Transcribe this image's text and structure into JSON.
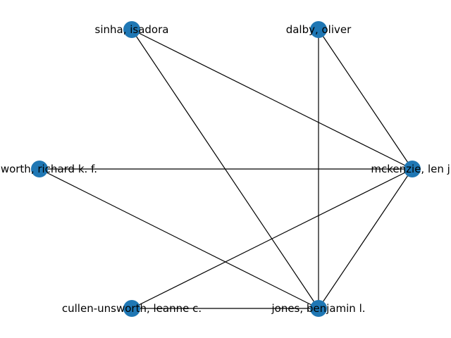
{
  "graph": {
    "node_color": "#1f77b4",
    "edge_color": "#000000",
    "nodes": [
      {
        "id": "sinha",
        "label": "sinha, isadora"
      },
      {
        "id": "dalby",
        "label": "dalby, oliver"
      },
      {
        "id": "unsworth",
        "label": "unsworth, richard k. f."
      },
      {
        "id": "mckenzie",
        "label": "mckenzie, len j."
      },
      {
        "id": "cullen",
        "label": "cullen-unsworth, leanne c."
      },
      {
        "id": "jones",
        "label": "jones, benjamin l."
      }
    ],
    "edges": [
      [
        "sinha",
        "mckenzie"
      ],
      [
        "sinha",
        "jones"
      ],
      [
        "dalby",
        "mckenzie"
      ],
      [
        "dalby",
        "jones"
      ],
      [
        "unsworth",
        "mckenzie"
      ],
      [
        "unsworth",
        "jones"
      ],
      [
        "mckenzie",
        "cullen"
      ],
      [
        "mckenzie",
        "jones"
      ],
      [
        "cullen",
        "jones"
      ]
    ]
  }
}
